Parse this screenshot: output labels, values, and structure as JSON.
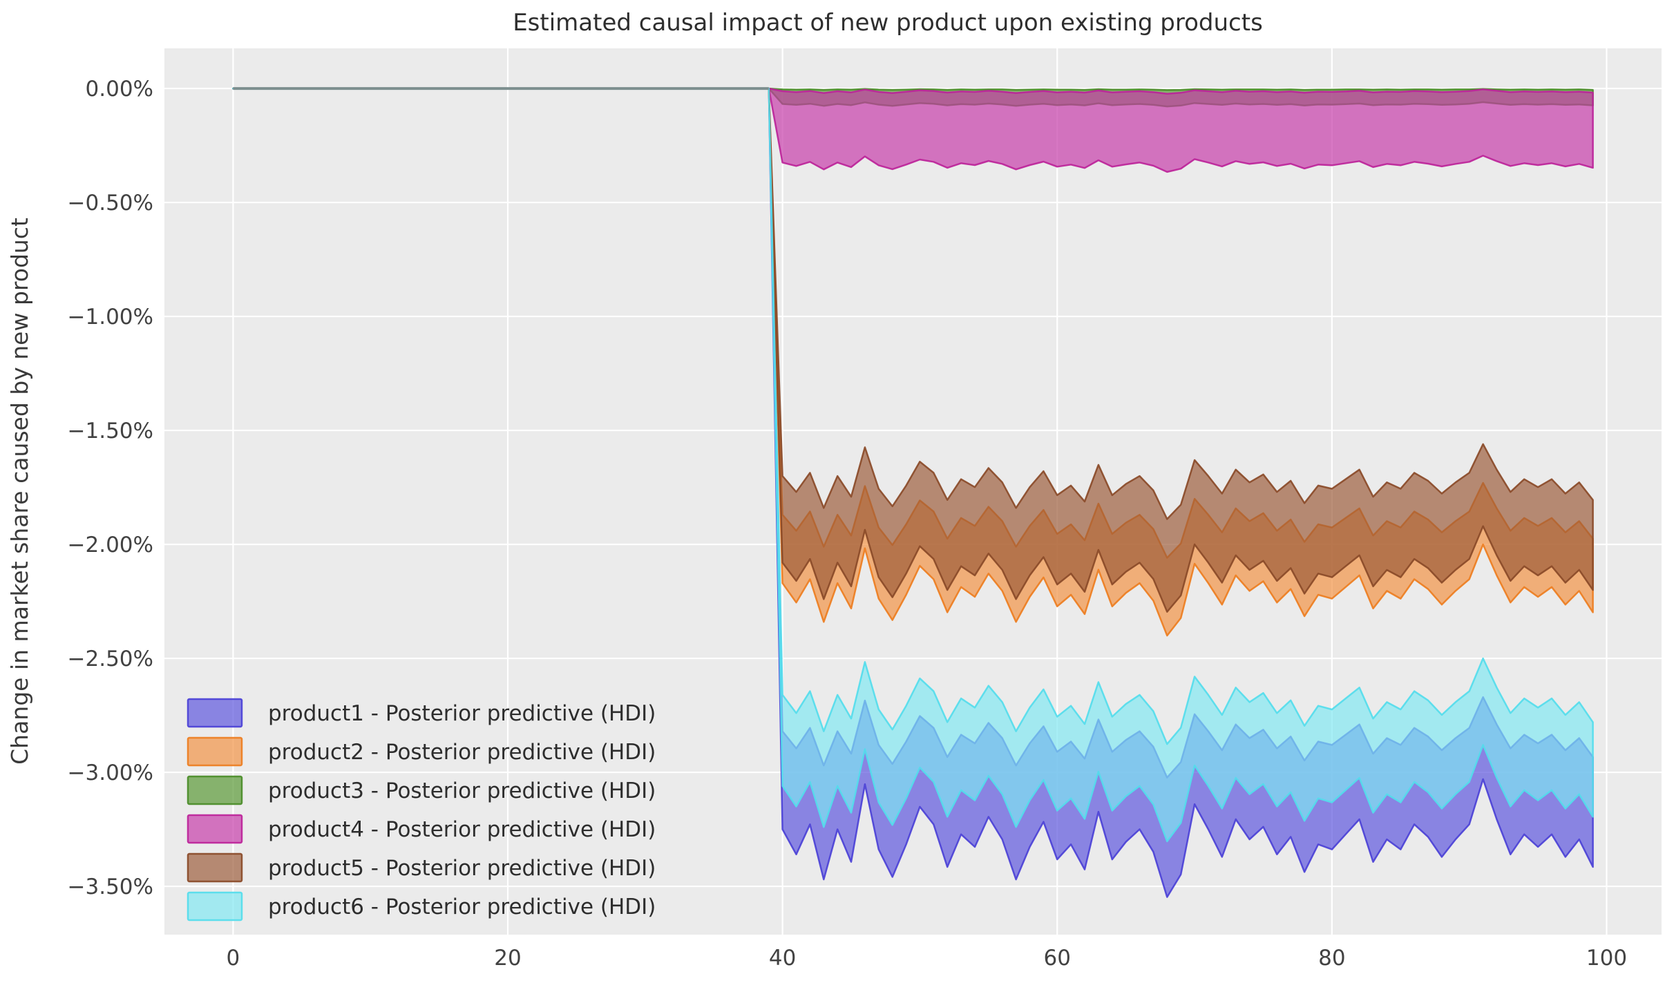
{
  "figure": {
    "background": "#ffffff",
    "plot_background": "#ebebeb",
    "grid_color": "#ffffff",
    "fill_opacity": 0.68,
    "edge_opacity": 0.92,
    "edge_width": 2.5
  },
  "chart_data": {
    "type": "area",
    "title": "Estimated causal impact of new product upon existing products",
    "ylabel": "Change in market share caused by new product",
    "xlabel": "",
    "legend_position": "lower left",
    "grid": true,
    "xlim": [
      -5,
      104
    ],
    "ylim_pct": [
      -3.712,
      0.176
    ],
    "x_ticks": [
      0,
      20,
      40,
      60,
      80,
      100
    ],
    "y_ticks": [
      {
        "value": 0.0,
        "label": "0.00%"
      },
      {
        "value": -0.5,
        "label": "−0.50%"
      },
      {
        "value": -1.0,
        "label": "−1.00%"
      },
      {
        "value": -1.5,
        "label": "−1.50%"
      },
      {
        "value": -2.0,
        "label": "−2.00%"
      },
      {
        "value": -2.5,
        "label": "−2.50%"
      },
      {
        "value": -3.0,
        "label": "−3.00%"
      },
      {
        "value": -3.5,
        "label": "−3.50%"
      }
    ],
    "pre_period": {
      "x_start": 0,
      "x_end": 39,
      "value": 0,
      "line_color": "#7d8f8f",
      "line_width": 4
    },
    "intervention_x": 40,
    "x_post": [
      40,
      41,
      42,
      43,
      44,
      45,
      46,
      47,
      48,
      49,
      50,
      51,
      52,
      53,
      54,
      55,
      56,
      57,
      58,
      59,
      60,
      61,
      62,
      63,
      64,
      65,
      66,
      67,
      68,
      69,
      70,
      71,
      72,
      73,
      74,
      75,
      76,
      77,
      78,
      79,
      80,
      81,
      82,
      83,
      84,
      85,
      86,
      87,
      88,
      89,
      90,
      91,
      92,
      93,
      94,
      95,
      96,
      97,
      98,
      99
    ],
    "series": [
      {
        "name": "product1",
        "label": "product1 - Posterior predictive (HDI)",
        "fill": "#5a52dd",
        "edge": "#4b41d6",
        "hdi_upper_pct": [
          -2.82,
          -2.895,
          -2.805,
          -2.97,
          -2.82,
          -2.918,
          -2.685,
          -2.88,
          -2.963,
          -2.865,
          -2.753,
          -2.805,
          -2.933,
          -2.835,
          -2.873,
          -2.783,
          -2.85,
          -2.97,
          -2.873,
          -2.798,
          -2.91,
          -2.865,
          -2.94,
          -2.768,
          -2.91,
          -2.858,
          -2.82,
          -2.888,
          -3.023,
          -2.955,
          -2.745,
          -2.82,
          -2.903,
          -2.79,
          -2.85,
          -2.813,
          -2.895,
          -2.843,
          -2.948,
          -2.865,
          -2.88,
          -2.835,
          -2.79,
          -2.918,
          -2.85,
          -2.88,
          -2.805,
          -2.843,
          -2.903,
          -2.85,
          -2.805,
          -2.67,
          -2.79,
          -2.895,
          -2.835,
          -2.873,
          -2.835,
          -2.903,
          -2.85,
          -2.933
        ],
        "hdi_lower_pct": [
          -3.25,
          -3.36,
          -3.228,
          -3.47,
          -3.25,
          -3.393,
          -3.052,
          -3.338,
          -3.459,
          -3.316,
          -3.151,
          -3.228,
          -3.415,
          -3.272,
          -3.327,
          -3.195,
          -3.294,
          -3.47,
          -3.327,
          -3.217,
          -3.382,
          -3.316,
          -3.426,
          -3.173,
          -3.382,
          -3.305,
          -3.25,
          -3.349,
          -3.547,
          -3.448,
          -3.14,
          -3.25,
          -3.371,
          -3.206,
          -3.294,
          -3.239,
          -3.36,
          -3.283,
          -3.437,
          -3.316,
          -3.338,
          -3.272,
          -3.206,
          -3.393,
          -3.294,
          -3.338,
          -3.228,
          -3.283,
          -3.371,
          -3.294,
          -3.228,
          -3.03,
          -3.206,
          -3.36,
          -3.272,
          -3.327,
          -3.272,
          -3.371,
          -3.294,
          -3.415
        ]
      },
      {
        "name": "product2",
        "label": "product2 - Posterior predictive (HDI)",
        "fill": "#f29141",
        "edge": "#ed7d20",
        "hdi_upper_pct": [
          -1.87,
          -1.94,
          -1.856,
          -2.01,
          -1.87,
          -1.961,
          -1.744,
          -1.926,
          -2.003,
          -1.912,
          -1.807,
          -1.856,
          -1.975,
          -1.884,
          -1.919,
          -1.835,
          -1.898,
          -2.01,
          -1.919,
          -1.849,
          -1.954,
          -1.912,
          -1.982,
          -1.821,
          -1.954,
          -1.905,
          -1.87,
          -1.933,
          -2.059,
          -1.996,
          -1.8,
          -1.87,
          -1.947,
          -1.842,
          -1.898,
          -1.863,
          -1.94,
          -1.891,
          -1.989,
          -1.912,
          -1.926,
          -1.884,
          -1.842,
          -1.961,
          -1.898,
          -1.926,
          -1.856,
          -1.891,
          -1.947,
          -1.898,
          -1.856,
          -1.73,
          -1.842,
          -1.94,
          -1.884,
          -1.919,
          -1.884,
          -1.947,
          -1.898,
          -1.975
        ],
        "hdi_lower_pct": [
          -2.17,
          -2.255,
          -2.153,
          -2.34,
          -2.17,
          -2.281,
          -2.017,
          -2.238,
          -2.332,
          -2.221,
          -2.094,
          -2.153,
          -2.298,
          -2.187,
          -2.23,
          -2.128,
          -2.204,
          -2.34,
          -2.23,
          -2.145,
          -2.272,
          -2.221,
          -2.306,
          -2.111,
          -2.272,
          -2.213,
          -2.17,
          -2.247,
          -2.4,
          -2.323,
          -2.085,
          -2.17,
          -2.264,
          -2.136,
          -2.204,
          -2.162,
          -2.255,
          -2.196,
          -2.315,
          -2.221,
          -2.238,
          -2.187,
          -2.136,
          -2.281,
          -2.204,
          -2.238,
          -2.153,
          -2.196,
          -2.264,
          -2.204,
          -2.153,
          -2.0,
          -2.136,
          -2.255,
          -2.187,
          -2.23,
          -2.187,
          -2.264,
          -2.204,
          -2.298
        ]
      },
      {
        "name": "product3",
        "label": "product3 - Posterior predictive (HDI)",
        "fill": "#569731",
        "edge": "#4a8c28",
        "hdi_upper_pct": [
          -0.004,
          -0.005,
          -0.004,
          -0.006,
          -0.004,
          -0.005,
          -0.002,
          -0.005,
          -0.006,
          -0.005,
          -0.003,
          -0.004,
          -0.006,
          -0.004,
          -0.005,
          -0.004,
          -0.004,
          -0.006,
          -0.005,
          -0.004,
          -0.005,
          -0.005,
          -0.006,
          -0.003,
          -0.005,
          -0.005,
          -0.004,
          -0.005,
          -0.007,
          -0.006,
          -0.003,
          -0.004,
          -0.005,
          -0.004,
          -0.004,
          -0.004,
          -0.005,
          -0.004,
          -0.006,
          -0.005,
          -0.005,
          -0.004,
          -0.004,
          -0.005,
          -0.004,
          -0.005,
          -0.004,
          -0.004,
          -0.005,
          -0.004,
          -0.004,
          -0.002,
          -0.004,
          -0.005,
          -0.004,
          -0.005,
          -0.004,
          -0.005,
          -0.004,
          -0.006
        ],
        "hdi_lower_pct": [
          -0.068,
          -0.072,
          -0.067,
          -0.076,
          -0.068,
          -0.073,
          -0.061,
          -0.071,
          -0.076,
          -0.07,
          -0.064,
          -0.067,
          -0.074,
          -0.069,
          -0.071,
          -0.066,
          -0.07,
          -0.076,
          -0.071,
          -0.067,
          -0.073,
          -0.07,
          -0.074,
          -0.065,
          -0.073,
          -0.07,
          -0.068,
          -0.072,
          -0.079,
          -0.075,
          -0.064,
          -0.068,
          -0.072,
          -0.066,
          -0.07,
          -0.068,
          -0.072,
          -0.069,
          -0.075,
          -0.07,
          -0.071,
          -0.069,
          -0.066,
          -0.073,
          -0.07,
          -0.071,
          -0.067,
          -0.069,
          -0.072,
          -0.07,
          -0.067,
          -0.06,
          -0.066,
          -0.072,
          -0.069,
          -0.071,
          -0.069,
          -0.072,
          -0.07,
          -0.074
        ]
      },
      {
        "name": "product4",
        "label": "product4 - Posterior predictive (HDI)",
        "fill": "#c638a8",
        "edge": "#bc2399",
        "hdi_upper_pct": [
          -0.012,
          -0.016,
          -0.011,
          -0.02,
          -0.012,
          -0.017,
          -0.005,
          -0.015,
          -0.02,
          -0.014,
          -0.008,
          -0.011,
          -0.018,
          -0.013,
          -0.015,
          -0.01,
          -0.014,
          -0.02,
          -0.015,
          -0.011,
          -0.017,
          -0.014,
          -0.018,
          -0.009,
          -0.017,
          -0.014,
          -0.012,
          -0.016,
          -0.023,
          -0.019,
          -0.008,
          -0.012,
          -0.016,
          -0.01,
          -0.014,
          -0.012,
          -0.016,
          -0.013,
          -0.019,
          -0.014,
          -0.015,
          -0.013,
          -0.01,
          -0.017,
          -0.014,
          -0.015,
          -0.011,
          -0.013,
          -0.016,
          -0.014,
          -0.011,
          -0.004,
          -0.01,
          -0.016,
          -0.013,
          -0.015,
          -0.013,
          -0.016,
          -0.014,
          -0.018
        ],
        "hdi_lower_pct": [
          -0.325,
          -0.34,
          -0.322,
          -0.355,
          -0.325,
          -0.345,
          -0.298,
          -0.337,
          -0.354,
          -0.334,
          -0.312,
          -0.322,
          -0.348,
          -0.328,
          -0.336,
          -0.318,
          -0.331,
          -0.355,
          -0.336,
          -0.321,
          -0.343,
          -0.334,
          -0.349,
          -0.315,
          -0.343,
          -0.333,
          -0.325,
          -0.339,
          -0.366,
          -0.352,
          -0.31,
          -0.325,
          -0.342,
          -0.319,
          -0.331,
          -0.324,
          -0.34,
          -0.33,
          -0.351,
          -0.334,
          -0.337,
          -0.328,
          -0.319,
          -0.345,
          -0.331,
          -0.337,
          -0.322,
          -0.33,
          -0.342,
          -0.331,
          -0.322,
          -0.295,
          -0.319,
          -0.34,
          -0.328,
          -0.336,
          -0.328,
          -0.342,
          -0.331,
          -0.348
        ]
      },
      {
        "name": "product5",
        "label": "product5 - Posterior predictive (HDI)",
        "fill": "#9b5a38",
        "edge": "#8a4a28",
        "hdi_upper_pct": [
          -1.7,
          -1.77,
          -1.686,
          -1.84,
          -1.7,
          -1.791,
          -1.574,
          -1.756,
          -1.833,
          -1.742,
          -1.637,
          -1.686,
          -1.805,
          -1.714,
          -1.749,
          -1.665,
          -1.728,
          -1.84,
          -1.749,
          -1.679,
          -1.784,
          -1.742,
          -1.812,
          -1.651,
          -1.784,
          -1.735,
          -1.7,
          -1.763,
          -1.889,
          -1.826,
          -1.63,
          -1.7,
          -1.777,
          -1.672,
          -1.728,
          -1.693,
          -1.77,
          -1.721,
          -1.819,
          -1.742,
          -1.756,
          -1.714,
          -1.672,
          -1.791,
          -1.728,
          -1.756,
          -1.686,
          -1.721,
          -1.777,
          -1.728,
          -1.686,
          -1.56,
          -1.672,
          -1.77,
          -1.714,
          -1.749,
          -1.714,
          -1.777,
          -1.728,
          -1.805
        ],
        "hdi_lower_pct": [
          -2.08,
          -2.16,
          -2.064,
          -2.24,
          -2.08,
          -2.184,
          -1.936,
          -2.144,
          -2.232,
          -2.128,
          -2.008,
          -2.064,
          -2.2,
          -2.096,
          -2.136,
          -2.04,
          -2.112,
          -2.24,
          -2.136,
          -2.056,
          -2.176,
          -2.128,
          -2.208,
          -2.024,
          -2.176,
          -2.12,
          -2.08,
          -2.152,
          -2.296,
          -2.224,
          -2.0,
          -2.08,
          -2.168,
          -2.048,
          -2.112,
          -2.072,
          -2.16,
          -2.104,
          -2.216,
          -2.128,
          -2.144,
          -2.096,
          -2.048,
          -2.184,
          -2.112,
          -2.144,
          -2.064,
          -2.104,
          -2.168,
          -2.112,
          -2.064,
          -1.92,
          -2.048,
          -2.16,
          -2.096,
          -2.136,
          -2.096,
          -2.168,
          -2.112,
          -2.2
        ]
      },
      {
        "name": "product6",
        "label": "product6 - Posterior predictive (HDI)",
        "fill": "#7fe7f2",
        "edge": "#54dcec",
        "hdi_upper_pct": [
          -2.66,
          -2.74,
          -2.644,
          -2.82,
          -2.66,
          -2.764,
          -2.516,
          -2.724,
          -2.812,
          -2.708,
          -2.588,
          -2.644,
          -2.78,
          -2.676,
          -2.716,
          -2.62,
          -2.692,
          -2.82,
          -2.716,
          -2.636,
          -2.756,
          -2.708,
          -2.788,
          -2.604,
          -2.756,
          -2.7,
          -2.66,
          -2.732,
          -2.876,
          -2.804,
          -2.58,
          -2.66,
          -2.748,
          -2.628,
          -2.692,
          -2.652,
          -2.74,
          -2.684,
          -2.796,
          -2.708,
          -2.724,
          -2.676,
          -2.628,
          -2.764,
          -2.692,
          -2.724,
          -2.644,
          -2.684,
          -2.748,
          -2.692,
          -2.644,
          -2.5,
          -2.628,
          -2.74,
          -2.676,
          -2.716,
          -2.676,
          -2.748,
          -2.692,
          -2.78
        ],
        "hdi_lower_pct": [
          -3.06,
          -3.15,
          -3.042,
          -3.24,
          -3.06,
          -3.177,
          -2.898,
          -3.132,
          -3.231,
          -3.114,
          -2.979,
          -3.042,
          -3.195,
          -3.078,
          -3.123,
          -3.015,
          -3.096,
          -3.24,
          -3.123,
          -3.033,
          -3.168,
          -3.114,
          -3.204,
          -2.997,
          -3.168,
          -3.105,
          -3.06,
          -3.141,
          -3.303,
          -3.222,
          -2.97,
          -3.06,
          -3.159,
          -3.024,
          -3.096,
          -3.051,
          -3.15,
          -3.087,
          -3.213,
          -3.114,
          -3.132,
          -3.078,
          -3.024,
          -3.177,
          -3.096,
          -3.132,
          -3.042,
          -3.087,
          -3.159,
          -3.096,
          -3.042,
          -2.88,
          -3.024,
          -3.15,
          -3.078,
          -3.123,
          -3.078,
          -3.159,
          -3.096,
          -3.195
        ]
      }
    ]
  }
}
